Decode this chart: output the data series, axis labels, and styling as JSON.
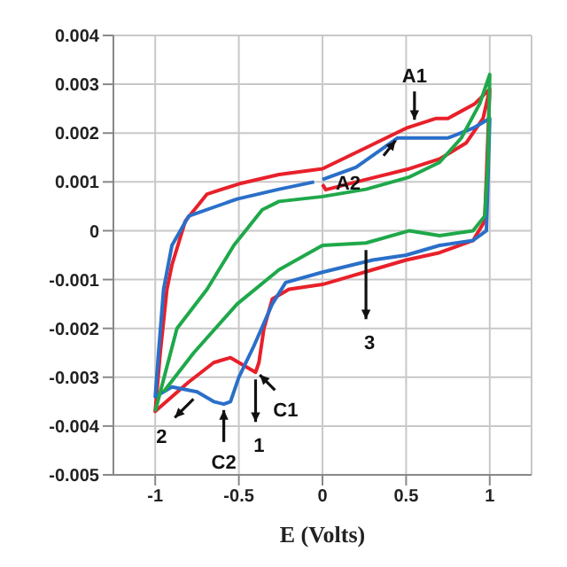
{
  "chart_data": {
    "type": "line",
    "xlabel": "E (Volts)",
    "xlim": [
      -1.25,
      1.25
    ],
    "xticks": [
      -1,
      -0.5,
      0,
      0.5,
      1
    ],
    "ylim": [
      -0.005,
      0.004
    ],
    "yticks": [
      -0.005,
      -0.004,
      -0.003,
      -0.002,
      -0.001,
      0,
      0.001,
      0.002,
      0.003,
      0.004
    ],
    "grid": true,
    "marker": "none",
    "line_style": "solid",
    "series": [
      {
        "color": "#e8202a",
        "x": [
          0,
          0.02,
          0.26,
          0.52,
          0.7,
          0.86,
          0.96,
          1,
          0.97,
          0.9,
          0.7,
          0.5,
          0.3,
          0.1,
          0,
          -0.2,
          -0.3,
          -0.35,
          -0.38,
          -0.4,
          -0.45,
          -0.55,
          -0.65,
          -0.8,
          -0.9,
          -1,
          -0.97,
          -0.93,
          -0.9,
          -0.82,
          -0.69,
          -0.5,
          -0.26,
          0,
          0.26,
          0.5,
          0.68,
          0.75,
          0.91,
          1
        ],
        "values": [
          0.00095,
          0.00084,
          0.00105,
          0.00127,
          0.00147,
          0.0018,
          0.0023,
          0.0029,
          0.0002,
          -0.0002,
          -0.00045,
          -0.0006,
          -0.0008,
          -0.001,
          -0.0011,
          -0.0012,
          -0.0014,
          -0.002,
          -0.0027,
          -0.0029,
          -0.0028,
          -0.0026,
          -0.0027,
          -0.0031,
          -0.0034,
          -0.0037,
          -0.0025,
          -0.0012,
          -0.0007,
          0.0002,
          0.00075,
          0.00096,
          0.00115,
          0.00127,
          0.0017,
          0.0021,
          0.0023,
          0.0023,
          0.0026,
          0.0029
        ]
      },
      {
        "color": "#2a6fc9",
        "x": [
          0,
          0.2,
          0.45,
          0.6,
          0.75,
          0.9,
          1,
          0.98,
          0.9,
          0.7,
          0.5,
          0.3,
          0,
          -0.22,
          -0.3,
          -0.41,
          -0.5,
          -0.55,
          -0.59,
          -0.65,
          -0.75,
          -0.9,
          -1,
          -0.98,
          -0.95,
          -0.9,
          -0.8,
          -0.51,
          -0.26,
          -0.05
        ],
        "values": [
          0.00105,
          0.0013,
          0.0019,
          0.0019,
          0.0019,
          0.0021,
          0.0023,
          0,
          -0.0002,
          -0.0003,
          -0.0005,
          -0.0006,
          -0.00085,
          -0.00106,
          -0.0015,
          -0.00236,
          -0.003,
          -0.0035,
          -0.00355,
          -0.0035,
          -0.0033,
          -0.0032,
          -0.0034,
          -0.0025,
          -0.0012,
          -0.0003,
          0.0003,
          0.00065,
          0.00085,
          0.001
        ]
      },
      {
        "color": "#1fa84a",
        "x": [
          -1,
          -0.87,
          -0.69,
          -0.53,
          -0.36,
          -0.26,
          0,
          0.26,
          0.52,
          0.7,
          0.83,
          0.94,
          1,
          0.99,
          0.97,
          0.9,
          0.7,
          0.52,
          0.26,
          0,
          -0.26,
          -0.51,
          -0.77,
          -0.95
        ],
        "values": [
          -0.0037,
          -0.002,
          -0.0012,
          -0.0003,
          0.00043,
          0.0006,
          0.0007,
          0.00085,
          0.0011,
          0.0014,
          0.0019,
          0.0026,
          0.0032,
          0.0015,
          0.0003,
          0,
          -0.0001,
          0,
          -0.00025,
          -0.0003,
          -0.0008,
          -0.0015,
          -0.0025,
          -0.0033
        ]
      }
    ],
    "annotations": [
      {
        "text": "A1",
        "x": 0.55,
        "y": 0.0022
      },
      {
        "text": "A2",
        "x": 0.45,
        "y": 0.0019
      },
      {
        "text": "C1",
        "x": -0.39,
        "y": -0.0029
      },
      {
        "text": "C2",
        "x": -0.59,
        "y": -0.0036
      },
      {
        "text": "1",
        "x": -0.4,
        "y": -0.0029
      },
      {
        "text": "2",
        "x": -0.75,
        "y": -0.0033
      },
      {
        "text": "3",
        "x": 0.26,
        "y": -0.00025
      }
    ]
  }
}
